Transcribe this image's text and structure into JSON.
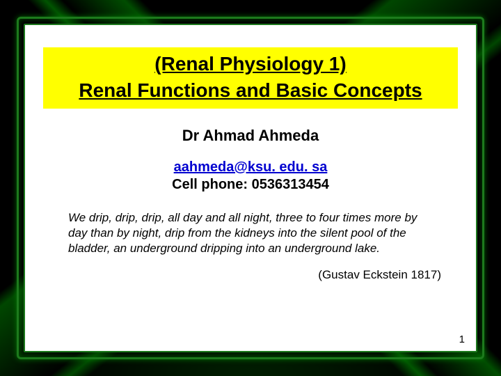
{
  "colors": {
    "page_bg": "#000000",
    "frame_border": "#1d7a1d",
    "panel_bg": "#ffffff",
    "title_bg": "#ffff00",
    "link": "#0000d0",
    "text": "#000000"
  },
  "title": {
    "line1": "(Renal Physiology 1)",
    "line2": "Renal Functions and Basic Concepts",
    "fontsize": 28,
    "weight": "bold",
    "underline": true
  },
  "author": {
    "text": "Dr Ahmad Ahmeda",
    "fontsize": 22,
    "weight": "bold"
  },
  "contact": {
    "email": "aahmeda@ksu. edu. sa",
    "phone_label": "Cell phone: 0536313454",
    "fontsize": 20,
    "weight": "bold"
  },
  "quote": {
    "text": "We drip, drip, drip, all day and all night, three to four times more by day than by night, drip from the kidneys into the silent pool of the bladder, an underground dripping into an underground lake.",
    "fontsize": 17,
    "style": "italic"
  },
  "attribution": {
    "text": "(Gustav Eckstein 1817)",
    "fontsize": 17
  },
  "slide_number": "1"
}
